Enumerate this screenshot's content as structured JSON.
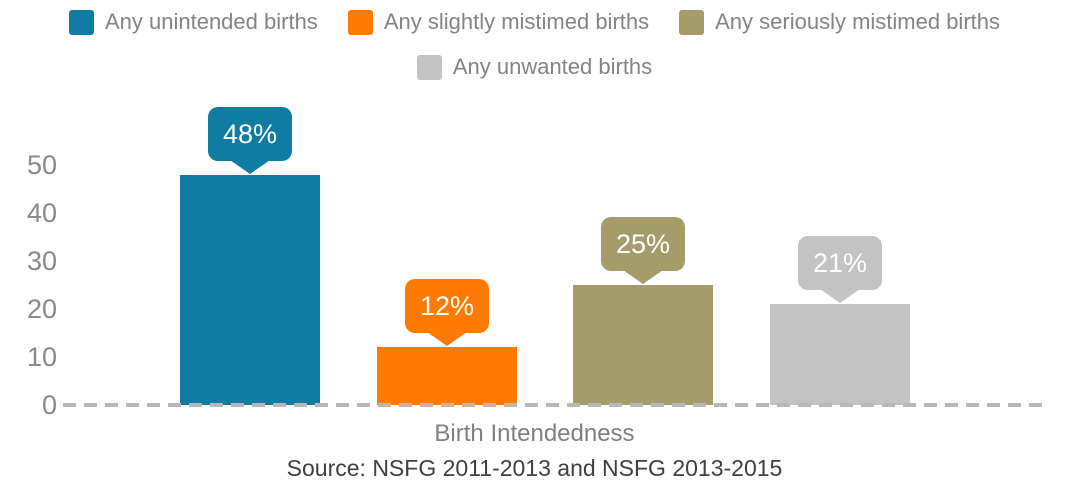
{
  "chart_data": {
    "type": "bar",
    "title": "",
    "categories": [
      "Any unintended births",
      "Any slightly mistimed births",
      "Any seriously mistimed births",
      "Any unwanted births"
    ],
    "values": [
      48,
      12,
      25,
      21
    ],
    "bar_labels": [
      "48%",
      "12%",
      "25%",
      "21%"
    ],
    "colors": [
      "#0e7ca3",
      "#ff7a00",
      "#a49c69",
      "#c3c3c3"
    ],
    "xlabel": "Birth Intendedness",
    "ylabel": "",
    "ylim": [
      0,
      50
    ],
    "yticks": [
      0,
      10,
      20,
      30,
      40,
      50
    ],
    "grid": false,
    "legend_position": "top",
    "baseline_style": "dashed",
    "source": "Source: NSFG 2011-2013 and NSFG 2013-2015"
  },
  "legend": {
    "rows": [
      [
        {
          "label": "Any unintended births",
          "color": "#0e7ca3"
        },
        {
          "label": "Any slightly mistimed births",
          "color": "#ff7a00"
        },
        {
          "label": "Any seriously mistimed births",
          "color": "#a49c69"
        }
      ],
      [
        {
          "label": "Any unwanted births",
          "color": "#c3c3c3"
        }
      ]
    ]
  },
  "colors": {
    "axis_text": "#8a8a8a",
    "legend_text": "#848484",
    "xlabel_text": "#808080",
    "source_text": "#3f3f3f",
    "baseline": "#b8b8b8"
  }
}
